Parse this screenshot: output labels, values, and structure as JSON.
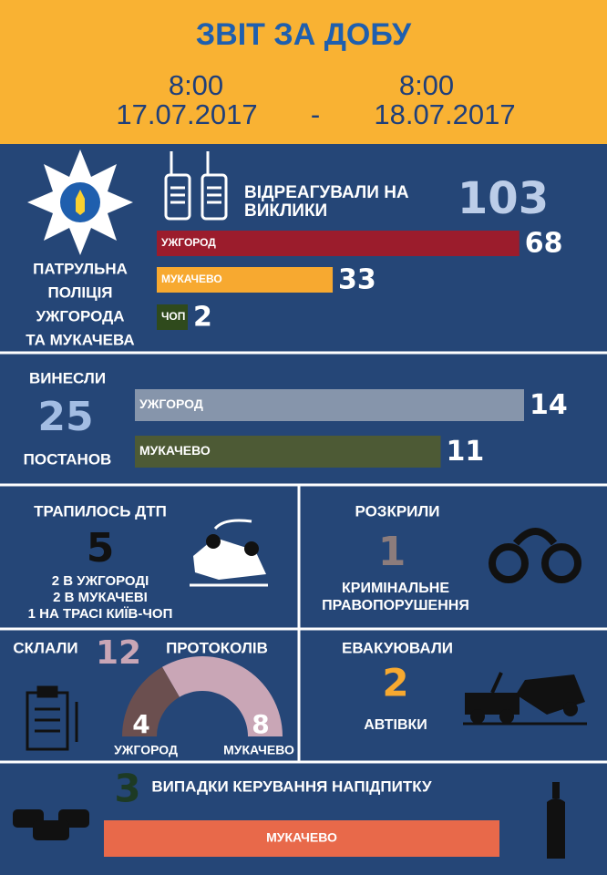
{
  "header": {
    "title": "ЗВІТ ЗА ДОБУ",
    "start": {
      "time": "8:00",
      "date": "17.07.2017"
    },
    "separator": "-",
    "end": {
      "time": "8:00",
      "date": "18.07.2017"
    }
  },
  "calls": {
    "org_lines": [
      "ПАТРУЛЬНА",
      "ПОЛІЦІЯ",
      "УЖГОРОДА",
      "ТА МУКАЧЕВА"
    ],
    "label_lines": [
      "ВІДРЕАГУВАЛИ НА",
      "ВИКЛИКИ"
    ],
    "total": 103,
    "bars": [
      {
        "name": "УЖГОРОД",
        "value": 68,
        "color": "#9b1c2c"
      },
      {
        "name": "МУКАЧЕВО",
        "value": 33,
        "color": "#f7a930"
      },
      {
        "name": "ЧОП",
        "value": 2,
        "color": "#2f4a1c"
      }
    ]
  },
  "resolutions": {
    "label_top": "ВИНЕСЛИ",
    "total": 25,
    "label_bottom": "ПОСТАНОВ",
    "bars": [
      {
        "name": "УЖГОРОД",
        "value": 14,
        "color": "#8695ab"
      },
      {
        "name": "МУКАЧЕВО",
        "value": 11,
        "color": "#4d5a35"
      }
    ]
  },
  "accidents": {
    "label": "ТРАПИЛОСЬ ДТП",
    "total": 5,
    "details": [
      "2 В УЖГОРОДІ",
      "2 В МУКАЧЕВІ",
      "1 НА ТРАСІ КИЇВ-ЧОП"
    ]
  },
  "crimes": {
    "label": "РОЗКРИЛИ",
    "total": 1,
    "details": [
      "КРИМІНАЛЬНЕ",
      "ПРАВОПОРУШЕННЯ"
    ]
  },
  "protocols": {
    "label_left": "СКЛАЛИ",
    "total": 12,
    "label_right": "ПРОТОКОЛІВ",
    "parts": [
      {
        "name": "УЖГОРОД",
        "value": 4,
        "color": "#6b4f4f"
      },
      {
        "name": "МУКАЧЕВО",
        "value": 8,
        "color": "#c9a6b6"
      }
    ]
  },
  "evacuations": {
    "label": "ЕВАКУЮВАЛИ",
    "total": 2,
    "unit": "АВТІВКИ"
  },
  "drunk_driving": {
    "total": 3,
    "label": "ВИПАДКИ КЕРУВАННЯ НАПІДПИТКУ",
    "bar": {
      "name": "МУКАЧЕВО",
      "color": "#e8694a"
    }
  }
}
